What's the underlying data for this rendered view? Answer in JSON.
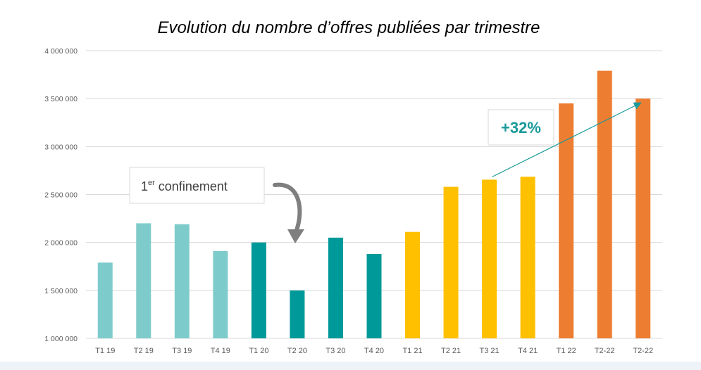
{
  "chart_data": {
    "type": "bar",
    "title": "Evolution du nombre d’offres publiées par trimestre",
    "categories": [
      "T1 19",
      "T2 19",
      "T3 19",
      "T4 19",
      "T1 20",
      "T2 20",
      "T3 20",
      "T4 20",
      "T1 21",
      "T2 21",
      "T3 21",
      "T4 21",
      "T1 22",
      "T2-22",
      "T2-22"
    ],
    "values": [
      1790000,
      2200000,
      2190000,
      1910000,
      2000000,
      1500000,
      2050000,
      1880000,
      2110000,
      2580000,
      2655000,
      2685000,
      3450000,
      3790000,
      3500000
    ],
    "bar_colors": [
      "#7ecbcb",
      "#7ecbcb",
      "#7ecbcb",
      "#7ecbcb",
      "#009999",
      "#009999",
      "#009999",
      "#009999",
      "#ffc000",
      "#ffc000",
      "#ffc000",
      "#ffc000",
      "#ed7d31",
      "#ed7d31",
      "#ed7d31"
    ],
    "ylim": [
      1000000,
      4000000
    ],
    "yticks": [
      1000000,
      1500000,
      2000000,
      2500000,
      3000000,
      3500000,
      4000000
    ],
    "ytick_labels": [
      "1 000 000",
      "1 500 000",
      "2 000 000",
      "2 500 000",
      "3 000 000",
      "3 500 000",
      "4 000 000"
    ],
    "xlabel": "",
    "ylabel": "",
    "grid": true,
    "annotations": {
      "confinement": {
        "text_main": "1",
        "text_sup": "er",
        "text_rest": " confinement"
      },
      "growth": {
        "text": "+32%",
        "from_category_index": 10,
        "to_category_index": 14,
        "color": "#1a9a9a"
      }
    },
    "colors": {
      "grid": "#d9d9d9",
      "axis_text": "#595959",
      "arrow_gray": "#7f7f7f"
    }
  }
}
